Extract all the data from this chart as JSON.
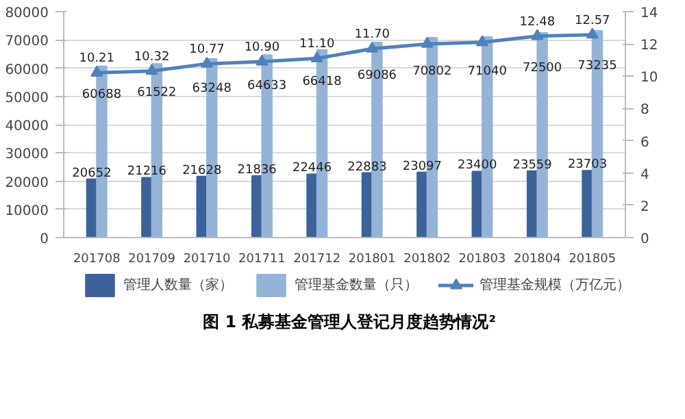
{
  "chart_data": {
    "type": "bar",
    "title": "图 1 私募基金管理人登记月度趋势情况²",
    "categories": [
      "201708",
      "201709",
      "201710",
      "201711",
      "201712",
      "201801",
      "201802",
      "201803",
      "201804",
      "201805"
    ],
    "series": [
      {
        "name": "管理人数量（家）",
        "color": "#3d6299",
        "values": [
          20652,
          21216,
          21628,
          21836,
          22446,
          22883,
          23097,
          23400,
          23559,
          23703
        ]
      },
      {
        "name": "管理基金数量（只）",
        "color": "#95b3d7",
        "values": [
          60688,
          61522,
          63248,
          64633,
          66418,
          69086,
          70802,
          71040,
          72500,
          73235
        ]
      },
      {
        "name": "管理基金规模（万亿元）",
        "color": "#4f81bd",
        "type": "line",
        "axis": "y2",
        "marker": "triangle",
        "values": [
          10.21,
          10.32,
          10.77,
          10.9,
          11.1,
          11.7,
          12.0,
          12.1,
          12.48,
          12.57
        ],
        "value_labels": [
          "10.21",
          "10.32",
          "10.77",
          "10.90",
          "11.10",
          "11.70",
          null,
          null,
          "12.48",
          "12.57"
        ]
      }
    ],
    "data_labels": true,
    "ylim": [
      0,
      80000
    ],
    "yticks": [
      0,
      10000,
      20000,
      30000,
      40000,
      50000,
      60000,
      70000,
      80000
    ],
    "y2lim": [
      0,
      14
    ],
    "y2ticks": [
      0,
      2,
      4,
      6,
      8,
      10,
      12,
      14
    ],
    "grid": "y",
    "legend": "bottom"
  }
}
